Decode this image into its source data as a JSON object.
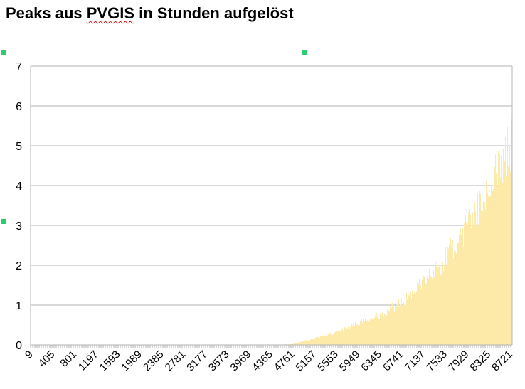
{
  "document": {
    "title_before": "Peaks aus ",
    "title_marked": "PVGIS",
    "title_after": " in Stunden aufgelöst",
    "spellcheck_color": "#d40000",
    "selection_handle_color": "#2ecc71"
  },
  "chart_data": {
    "type": "bar",
    "title": "",
    "xlabel": "",
    "ylabel": "",
    "bar_color": "#fde9a8",
    "grid": true,
    "legend": "none",
    "ylim": [
      0,
      7
    ],
    "yticks": [
      "0",
      "1",
      "2",
      "3",
      "4",
      "5",
      "6",
      "7"
    ],
    "xlim": [
      9,
      8760
    ],
    "x_tick_labels": [
      "9",
      "405",
      "801",
      "1197",
      "1593",
      "1989",
      "2385",
      "2781",
      "3177",
      "3573",
      "3969",
      "4365",
      "4761",
      "5157",
      "5553",
      "5949",
      "6345",
      "6741",
      "7137",
      "7533",
      "7929",
      "8325",
      "8721"
    ],
    "series": [
      {
        "x": [
          9,
          405,
          801,
          1197,
          1593,
          1989,
          2385,
          2781,
          3177,
          3573,
          3969,
          4365,
          4761,
          4900,
          5157,
          5553,
          5949,
          6345,
          6741,
          7137,
          7533,
          7929,
          8325,
          8721,
          8760
        ],
        "values": [
          0,
          0,
          0,
          0,
          0,
          0,
          0,
          0,
          0,
          0,
          0,
          0,
          0.02,
          0.08,
          0.18,
          0.35,
          0.6,
          0.85,
          1.2,
          1.75,
          2.45,
          3.35,
          4.35,
          5.7,
          6.0
        ]
      }
    ]
  }
}
